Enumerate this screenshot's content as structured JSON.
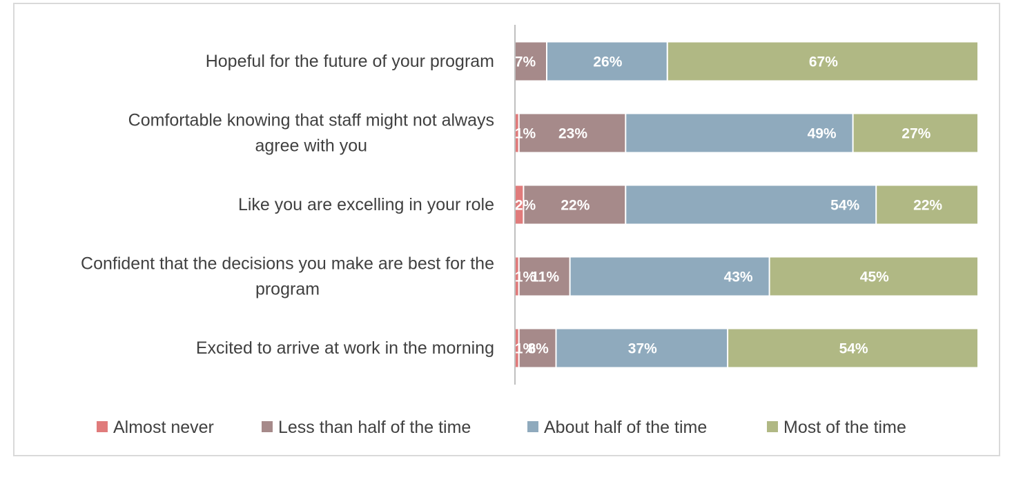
{
  "chart_data": {
    "type": "bar",
    "orientation": "horizontal",
    "stacked": true,
    "normalized_percent": true,
    "categories": [
      "Hopeful for the future of your program",
      "Comfortable knowing that staff might not always agree with you",
      "Like you are excelling in your role",
      "Confident that the decisions you make are best for the program",
      "Excited to arrive at work in the morning"
    ],
    "series": [
      {
        "name": "Almost never",
        "color": "#e07b7b",
        "values": [
          0,
          1,
          2,
          1,
          1
        ],
        "labels": [
          "",
          "1%",
          "2%",
          "1%",
          "1%"
        ]
      },
      {
        "name": "Less than half of the time",
        "color": "#a68a8a",
        "values": [
          7,
          23,
          22,
          11,
          8
        ],
        "labels": [
          "7%",
          "23%",
          "22%",
          "11%",
          "8%"
        ]
      },
      {
        "name": "About half of the time",
        "color": "#8faabd",
        "values": [
          26,
          49,
          54,
          43,
          37
        ],
        "labels": [
          "26%",
          "49%",
          "54%",
          "43%",
          "37%"
        ]
      },
      {
        "name": "Most of the time",
        "color": "#b0b884",
        "values": [
          67,
          27,
          22,
          45,
          54
        ],
        "labels": [
          "67%",
          "27%",
          "22%",
          "45%",
          "54%"
        ]
      }
    ],
    "xlim": [
      0,
      100
    ],
    "axis_line_color": "#bfbfbf",
    "grid": false,
    "legend_position": "bottom",
    "title": "",
    "xlabel": "",
    "ylabel": ""
  }
}
